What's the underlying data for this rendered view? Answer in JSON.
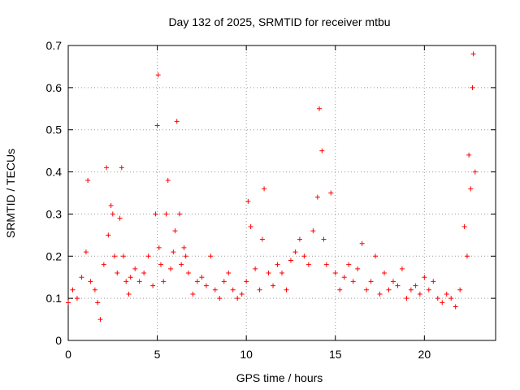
{
  "chart_data": {
    "type": "scatter",
    "title": "Day 132 of 2025, SRMTID for receiver mtbu",
    "xlabel": "GPS time / hours",
    "ylabel": "SRMTID / TECUs",
    "xlim": [
      0,
      24
    ],
    "ylim": [
      0,
      0.7
    ],
    "xticks": [
      0,
      5,
      10,
      15,
      20
    ],
    "xtick_labels": [
      "0",
      "5",
      "10",
      "15",
      "20"
    ],
    "yticks": [
      0,
      0.1,
      0.2,
      0.3,
      0.4,
      0.5,
      0.6,
      0.7
    ],
    "ytick_labels": [
      "0",
      "0.1",
      "0.2",
      "0.3",
      "0.4",
      "0.5",
      "0.6",
      "0.7"
    ],
    "grid": true,
    "grid_style": "dotted",
    "marker": "+",
    "series": [
      {
        "name": "SRMTID",
        "color": "#ff0000",
        "x": [
          0.0,
          0.25,
          0.5,
          0.75,
          1.0,
          1.1,
          1.25,
          1.5,
          1.65,
          1.8,
          2.0,
          2.15,
          2.25,
          2.4,
          2.5,
          2.6,
          2.75,
          2.9,
          3.0,
          3.1,
          3.25,
          3.4,
          3.5,
          3.75,
          4.0,
          4.25,
          4.5,
          4.75,
          4.9,
          5.0,
          5.05,
          5.1,
          5.2,
          5.35,
          5.5,
          5.6,
          5.75,
          5.9,
          6.0,
          6.1,
          6.25,
          6.35,
          6.5,
          6.6,
          6.75,
          7.0,
          7.25,
          7.5,
          7.75,
          8.0,
          8.25,
          8.5,
          8.75,
          9.0,
          9.25,
          9.5,
          9.75,
          10.0,
          10.1,
          10.25,
          10.5,
          10.75,
          10.9,
          11.0,
          11.25,
          11.5,
          11.75,
          12.0,
          12.25,
          12.5,
          12.75,
          13.0,
          13.25,
          13.5,
          13.75,
          14.0,
          14.1,
          14.25,
          14.35,
          14.5,
          14.75,
          15.0,
          15.25,
          15.5,
          15.75,
          16.0,
          16.25,
          16.5,
          16.75,
          17.0,
          17.25,
          17.5,
          17.75,
          18.0,
          18.25,
          18.5,
          18.75,
          19.0,
          19.25,
          19.5,
          19.75,
          20.0,
          20.25,
          20.5,
          20.75,
          21.0,
          21.25,
          21.5,
          21.75,
          22.0,
          22.25,
          22.4,
          22.5,
          22.6,
          22.7,
          22.75,
          22.85
        ],
        "y": [
          0.09,
          0.12,
          0.1,
          0.15,
          0.21,
          0.38,
          0.14,
          0.12,
          0.09,
          0.05,
          0.18,
          0.41,
          0.25,
          0.32,
          0.3,
          0.2,
          0.16,
          0.29,
          0.41,
          0.2,
          0.14,
          0.11,
          0.15,
          0.17,
          0.14,
          0.16,
          0.2,
          0.13,
          0.3,
          0.51,
          0.63,
          0.22,
          0.18,
          0.14,
          0.3,
          0.38,
          0.17,
          0.21,
          0.26,
          0.52,
          0.3,
          0.18,
          0.22,
          0.2,
          0.16,
          0.11,
          0.14,
          0.15,
          0.13,
          0.2,
          0.12,
          0.1,
          0.14,
          0.16,
          0.12,
          0.1,
          0.11,
          0.14,
          0.33,
          0.27,
          0.17,
          0.12,
          0.24,
          0.36,
          0.16,
          0.13,
          0.18,
          0.16,
          0.12,
          0.19,
          0.21,
          0.24,
          0.2,
          0.18,
          0.26,
          0.34,
          0.55,
          0.45,
          0.24,
          0.18,
          0.35,
          0.16,
          0.12,
          0.15,
          0.18,
          0.14,
          0.17,
          0.23,
          0.12,
          0.14,
          0.2,
          0.11,
          0.16,
          0.12,
          0.14,
          0.13,
          0.17,
          0.1,
          0.12,
          0.13,
          0.11,
          0.15,
          0.12,
          0.14,
          0.1,
          0.09,
          0.11,
          0.1,
          0.08,
          0.12,
          0.27,
          0.2,
          0.44,
          0.36,
          0.6,
          0.68,
          0.4
        ]
      }
    ]
  }
}
